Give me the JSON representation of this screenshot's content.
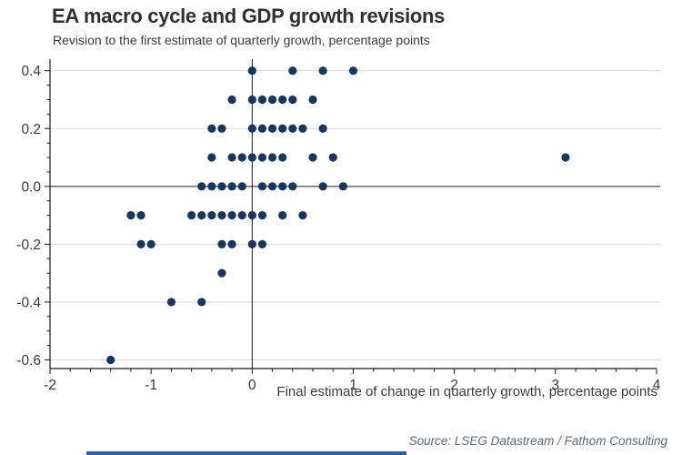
{
  "header": {
    "title": "EA macro cycle and GDP growth revisions",
    "subtitle": "Revision to the first estimate of quarterly growth, percentage points"
  },
  "footer": {
    "source": "Source: LSEG Datastream / Fathom Consulting"
  },
  "colors": {
    "dot": "#17375E",
    "grid": "#DCDCDC",
    "axis": "#1a1a1a",
    "zero_line": "#1a1a1a",
    "tick_text": "#3a3a3a",
    "title_text": "#303030",
    "source_text": "#5a6b78",
    "accent_bar": "#2E5FA8"
  },
  "chart_data": {
    "type": "scatter",
    "title": "EA macro cycle and GDP growth revisions",
    "subtitle": "Revision to the first estimate of quarterly growth, percentage points",
    "xlabel": "Final estimate of change in quarterly growth, percentage points",
    "ylabel": "",
    "xlim": [
      -2,
      4
    ],
    "ylim": [
      -0.63,
      0.44
    ],
    "grid": "horizontal-only",
    "legend": "none",
    "x_ticks": [
      {
        "v": -2,
        "label": "-2"
      },
      {
        "v": -1,
        "label": "-1"
      },
      {
        "v": 0,
        "label": "0"
      },
      {
        "v": 1,
        "label": "1"
      },
      {
        "v": 2,
        "label": "2"
      },
      {
        "v": 3,
        "label": "3"
      },
      {
        "v": 4,
        "label": "4"
      }
    ],
    "y_ticks": [
      {
        "v": 0.4,
        "label": "0.4"
      },
      {
        "v": 0.2,
        "label": "0.2"
      },
      {
        "v": 0.0,
        "label": "0.0"
      },
      {
        "v": -0.2,
        "label": "-0.2"
      },
      {
        "v": -0.4,
        "label": "-0.4"
      },
      {
        "v": -0.6,
        "label": "-0.6"
      }
    ],
    "x_minor_step": 0.2,
    "y_minor_step": 0.05,
    "points": [
      [
        0.0,
        0.4
      ],
      [
        0.4,
        0.4
      ],
      [
        0.7,
        0.4
      ],
      [
        1.0,
        0.4
      ],
      [
        -0.2,
        0.3
      ],
      [
        0.0,
        0.3
      ],
      [
        0.1,
        0.3
      ],
      [
        0.2,
        0.3
      ],
      [
        0.3,
        0.3
      ],
      [
        0.4,
        0.3
      ],
      [
        0.6,
        0.3
      ],
      [
        -0.4,
        0.2
      ],
      [
        -0.3,
        0.2
      ],
      [
        0.0,
        0.2
      ],
      [
        0.1,
        0.2
      ],
      [
        0.2,
        0.2
      ],
      [
        0.3,
        0.2
      ],
      [
        0.4,
        0.2
      ],
      [
        0.5,
        0.2
      ],
      [
        0.7,
        0.2
      ],
      [
        -0.4,
        0.1
      ],
      [
        -0.2,
        0.1
      ],
      [
        -0.1,
        0.1
      ],
      [
        0.0,
        0.1
      ],
      [
        0.1,
        0.1
      ],
      [
        0.2,
        0.1
      ],
      [
        0.3,
        0.1
      ],
      [
        0.6,
        0.1
      ],
      [
        0.8,
        0.1
      ],
      [
        3.1,
        0.1
      ],
      [
        -0.5,
        0.0
      ],
      [
        -0.4,
        0.0
      ],
      [
        -0.3,
        0.0
      ],
      [
        -0.2,
        0.0
      ],
      [
        -0.1,
        0.0
      ],
      [
        0.1,
        0.0
      ],
      [
        0.2,
        0.0
      ],
      [
        0.3,
        0.0
      ],
      [
        0.4,
        0.0
      ],
      [
        0.7,
        0.0
      ],
      [
        0.9,
        0.0
      ],
      [
        -1.2,
        -0.1
      ],
      [
        -1.1,
        -0.1
      ],
      [
        -0.6,
        -0.1
      ],
      [
        -0.5,
        -0.1
      ],
      [
        -0.4,
        -0.1
      ],
      [
        -0.3,
        -0.1
      ],
      [
        -0.2,
        -0.1
      ],
      [
        -0.1,
        -0.1
      ],
      [
        0.0,
        -0.1
      ],
      [
        0.1,
        -0.1
      ],
      [
        0.3,
        -0.1
      ],
      [
        0.5,
        -0.1
      ],
      [
        -1.1,
        -0.2
      ],
      [
        -1.0,
        -0.2
      ],
      [
        -0.3,
        -0.2
      ],
      [
        -0.2,
        -0.2
      ],
      [
        0.0,
        -0.2
      ],
      [
        0.1,
        -0.2
      ],
      [
        -0.3,
        -0.3
      ],
      [
        -0.8,
        -0.4
      ],
      [
        -0.5,
        -0.4
      ],
      [
        -1.4,
        -0.6
      ]
    ]
  }
}
